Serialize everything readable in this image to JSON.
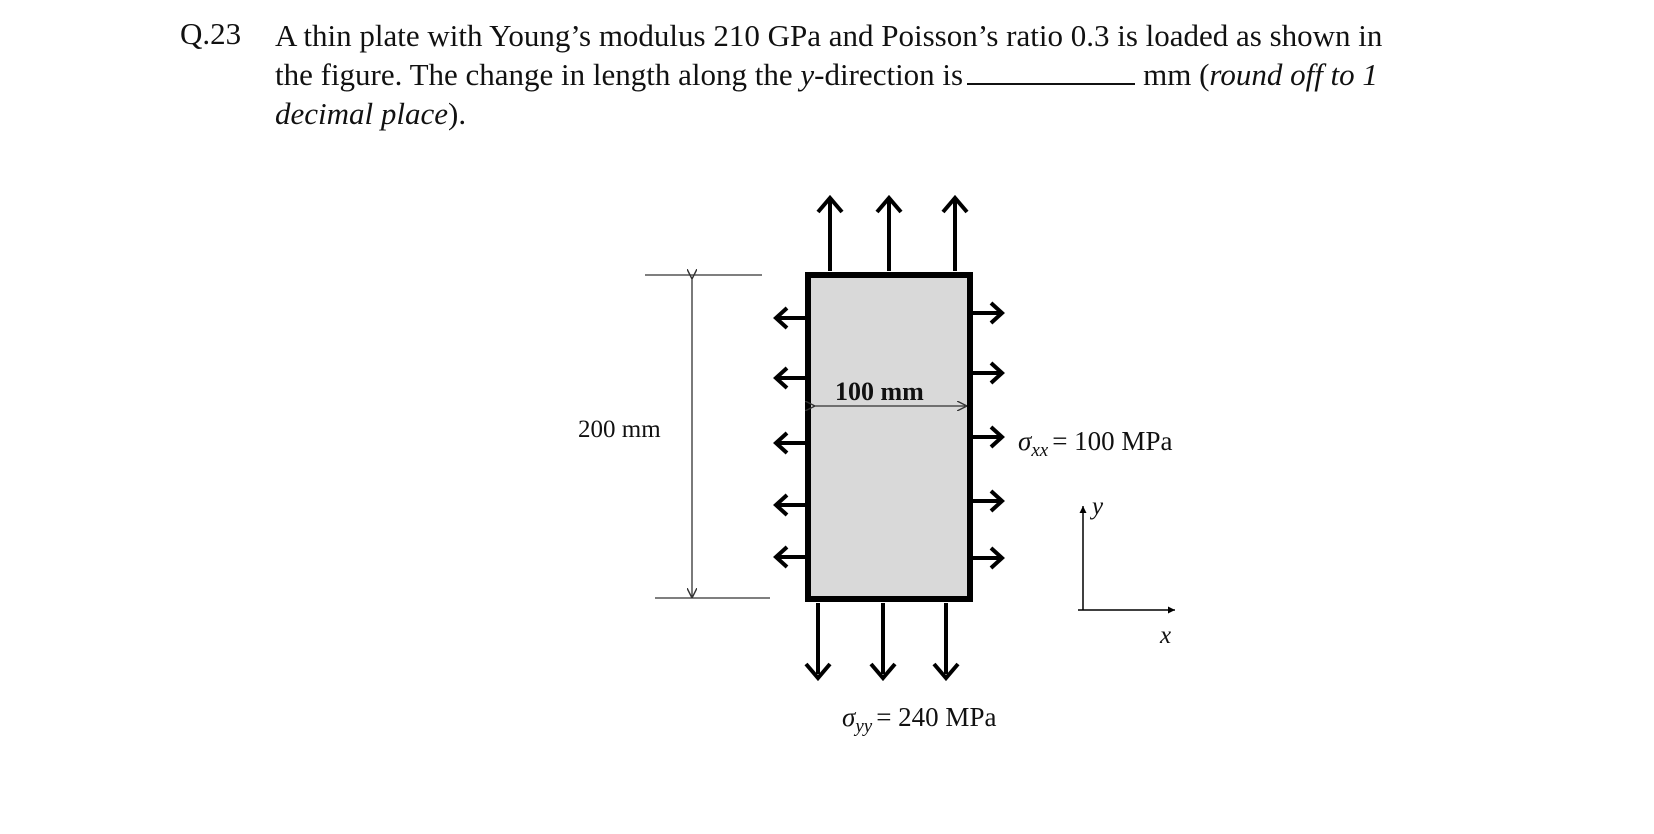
{
  "question": {
    "number": "Q.23",
    "line1": "A thin plate with Young’s modulus 210 GPa and Poisson’s ratio 0.3 is loaded as shown in",
    "line2_before": "the figure. The change in length along the ",
    "line2_var": "y",
    "line2_mid": "-direction is",
    "line2_unit": "mm (",
    "line2_italic": "round off to 1",
    "line3_italic": "decimal place",
    "line3_end": ")."
  },
  "figure": {
    "height_label": "200 mm",
    "width_label": "100 mm",
    "sigma_symbol": "σ",
    "sigma_xx_subscript": "xx",
    "sigma_xx_value": "= 100 MPa",
    "sigma_yy_subscript": "yy",
    "sigma_yy_value": "= 240 MPa",
    "axis_y_label": "y",
    "axis_x_label": "x",
    "plate_fill": "#d9d9d9",
    "plate_stroke": "#000000"
  }
}
